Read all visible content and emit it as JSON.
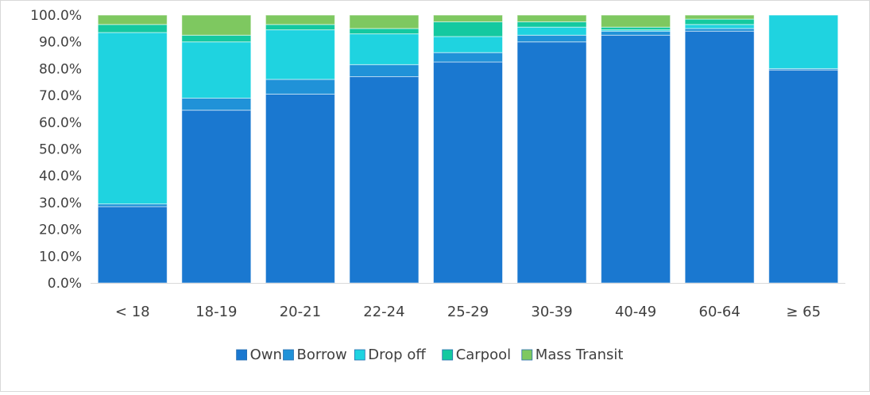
{
  "chart_data": {
    "type": "bar",
    "stacked": true,
    "categories": [
      "< 18",
      "18-19",
      "20-21",
      "22-24",
      "25-29",
      "30-39",
      "40-49",
      "60-64",
      "≥ 65"
    ],
    "series": [
      {
        "name": "Own",
        "color": "#1a78d0",
        "values": [
          28.5,
          64.5,
          70.5,
          77.0,
          82.5,
          90.0,
          92.5,
          94.0,
          79.5
        ]
      },
      {
        "name": "Borrow",
        "color": "#2092d8",
        "values": [
          1.0,
          4.5,
          5.5,
          4.5,
          3.5,
          2.5,
          1.5,
          1.0,
          0.5
        ]
      },
      {
        "name": "Drop off",
        "color": "#1fd3e0",
        "values": [
          64.0,
          21.0,
          18.5,
          11.5,
          6.0,
          3.0,
          0.5,
          1.5,
          20.0
        ]
      },
      {
        "name": "Carpool",
        "color": "#14c9a0",
        "values": [
          3.0,
          2.5,
          2.0,
          2.0,
          5.5,
          2.0,
          1.0,
          2.0,
          0.0
        ]
      },
      {
        "name": "Mass Transit",
        "color": "#7ec860",
        "values": [
          3.5,
          7.5,
          3.5,
          5.0,
          2.5,
          2.5,
          4.5,
          1.5,
          0.0
        ]
      }
    ],
    "yticks": [
      "0.0%",
      "10.0%",
      "20.0%",
      "30.0%",
      "40.0%",
      "50.0%",
      "60.0%",
      "70.0%",
      "80.0%",
      "90.0%",
      "100.0%"
    ],
    "ylim": [
      0,
      100
    ],
    "grid": false,
    "legend_position": "bottom",
    "title": "",
    "xlabel": "",
    "ylabel": ""
  }
}
